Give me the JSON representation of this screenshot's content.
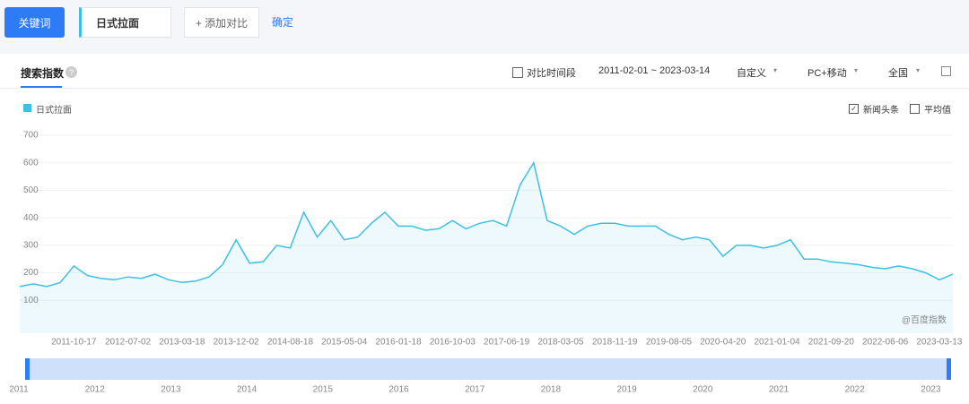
{
  "ui": {
    "keyword_button": "关键词",
    "keyword": "日式拉面",
    "add_compare": "+ 添加对比",
    "confirm": "确定",
    "tab": "搜索指数",
    "compare_period": "对比时间段",
    "date_range": "2011-02-01 ~ 2023-03-14",
    "custom": "自定义",
    "device": "PC+移动",
    "region": "全国",
    "watermark": "@百度指数",
    "options": [
      {
        "label": "新闻头条",
        "checked": true
      },
      {
        "label": "平均值",
        "checked": false
      }
    ],
    "years": [
      "2011",
      "2012",
      "2013",
      "2014",
      "2015",
      "2016",
      "2017",
      "2018",
      "2019",
      "2020",
      "2021",
      "2022",
      "2023"
    ]
  },
  "chart_data": {
    "type": "line",
    "ylim": [
      0,
      700
    ],
    "yticks": [
      100,
      200,
      300,
      400,
      500,
      600,
      700
    ],
    "grid": true,
    "x": [
      null,
      null,
      null,
      null,
      "2011-10-17",
      null,
      null,
      null,
      "2012-07-02",
      null,
      null,
      null,
      "2013-03-18",
      null,
      null,
      null,
      "2013-12-02",
      null,
      null,
      null,
      "2014-08-18",
      null,
      null,
      null,
      "2015-05-04",
      null,
      null,
      null,
      "2016-01-18",
      null,
      null,
      null,
      "2016-10-03",
      null,
      null,
      null,
      "2017-06-19",
      null,
      null,
      null,
      "2018-03-05",
      null,
      null,
      null,
      "2018-11-19",
      null,
      null,
      null,
      "2019-08-05",
      null,
      null,
      null,
      "2020-04-20",
      null,
      null,
      null,
      "2021-01-04",
      null,
      null,
      null,
      "2021-09-20",
      null,
      null,
      null,
      "2022-06-06",
      null,
      null,
      null,
      "2023-03-13",
      null
    ],
    "series": [
      {
        "name": "日式拉面",
        "color": "#3cc0e6",
        "values": [
          150,
          160,
          150,
          165,
          225,
          190,
          180,
          175,
          185,
          180,
          195,
          175,
          165,
          170,
          185,
          230,
          320,
          235,
          240,
          300,
          290,
          420,
          330,
          390,
          320,
          330,
          380,
          420,
          370,
          370,
          355,
          360,
          390,
          360,
          380,
          390,
          370,
          520,
          600,
          390,
          370,
          340,
          370,
          380,
          380,
          370,
          370,
          370,
          340,
          320,
          330,
          320,
          260,
          300,
          300,
          290,
          300,
          320,
          250,
          250,
          240,
          235,
          230,
          220,
          215,
          225,
          215,
          200,
          175,
          195
        ]
      }
    ]
  }
}
